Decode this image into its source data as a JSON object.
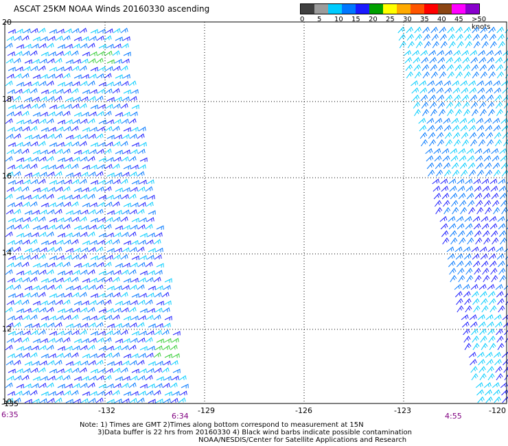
{
  "title": "ASCAT 25KM NOAA Winds 20160330 ascending",
  "legend": {
    "ticks": [
      "0",
      "5",
      "10",
      "15",
      "20",
      "25",
      "30",
      "35",
      "40",
      "45",
      ">50 knots"
    ],
    "colors": [
      "#404040",
      "#9c9c9c",
      "#00ccff",
      "#0077ff",
      "#1a1aff",
      "#00a000",
      "#ffff00",
      "#ffaa00",
      "#ff5500",
      "#ff0000",
      "#8b4513",
      "#ff00ff",
      "#8800cc"
    ]
  },
  "axes": {
    "x_ticks": [
      "-135",
      "-132",
      "-129",
      "-126",
      "-123",
      "-120"
    ],
    "y_ticks": [
      "20",
      "18",
      "16",
      "14",
      "12",
      "10"
    ]
  },
  "times": [
    "6:35",
    "6:34",
    "4:55"
  ],
  "notes": {
    "line1": "Note: 1) Times are GMT 2)Times along bottom correspond to measurement at 15N",
    "line2": "3)Data buffer is 22 hrs from 20160330 4) Black wind barbs indicate possible contamination",
    "line3": "NOAA/NESDIS/Center for Satellite Applications and Research"
  },
  "swaths": {
    "left_colors": [
      "#1a1aff",
      "#00ccff",
      "#0077ff"
    ],
    "right_colors": [
      "#00ccff",
      "#0077ff",
      "#1a1aff"
    ],
    "highlight_color": "#33cc33"
  }
}
